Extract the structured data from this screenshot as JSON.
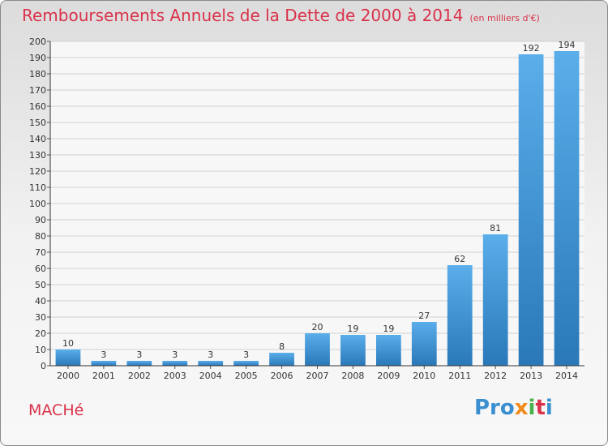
{
  "title": "Remboursements Annuels de la Dette de 2000 à 2014",
  "unit": "(en milliers d'€)",
  "commune": "MACHé",
  "logo": {
    "p1": "Pro",
    "p2": "x",
    "p3": "i",
    "p4": "t",
    "p5": "i"
  },
  "colors": {
    "bar": "#3a8fd0",
    "accent": "#d8324a"
  },
  "chart_data": {
    "type": "bar",
    "categories": [
      "2000",
      "2001",
      "2002",
      "2003",
      "2004",
      "2005",
      "2006",
      "2007",
      "2008",
      "2009",
      "2010",
      "2011",
      "2012",
      "2013",
      "2014"
    ],
    "values": [
      10,
      3,
      3,
      3,
      3,
      3,
      8,
      20,
      19,
      19,
      27,
      62,
      81,
      192,
      194
    ],
    "ylim": [
      0,
      200
    ],
    "ytick_step": 10,
    "grid": true,
    "data_labels": true
  }
}
